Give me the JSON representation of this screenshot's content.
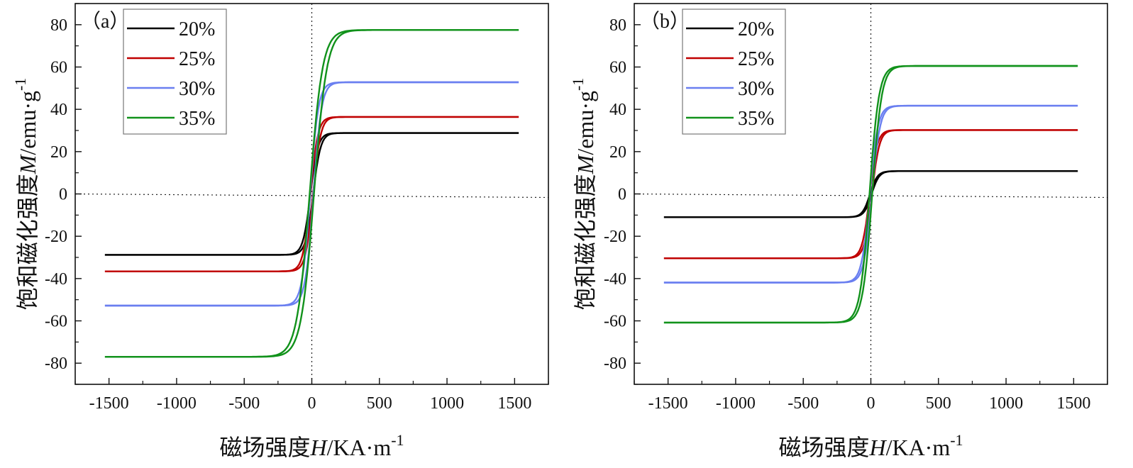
{
  "chart_data": [
    {
      "type": "line",
      "panel_label": "（a）",
      "xlabel_prefix": "磁场强度",
      "xlabel_symbol": "H",
      "xlabel_unit": "/KA·m",
      "xlabel_exp": "-1",
      "ylabel_prefix": "饱和磁化强度",
      "ylabel_symbol": "M",
      "ylabel_unit": "/emu·g",
      "ylabel_exp": "-1",
      "xlim": [
        -1750,
        1750
      ],
      "ylim": [
        -90,
        90
      ],
      "xticks": [
        -1500,
        -1000,
        -500,
        0,
        500,
        1000,
        1500
      ],
      "xtick_labels": [
        "-1500",
        "-1000",
        "-500",
        "0",
        "500",
        "1000",
        "1500"
      ],
      "yticks": [
        -80,
        -60,
        -40,
        -20,
        0,
        20,
        40,
        60,
        80
      ],
      "ytick_labels": [
        "-80",
        "-60",
        "-40",
        "-20",
        "0",
        "20",
        "40",
        "60",
        "80"
      ],
      "legend_position": "top-left",
      "series": [
        {
          "name": "20%",
          "color": "#000000",
          "ms": 28.8,
          "ms_neg": 28.8,
          "width": 55,
          "loop_offset": 10
        },
        {
          "name": "25%",
          "color": "#c00000",
          "ms": 36.4,
          "ms_neg": 36.6,
          "width": 55,
          "loop_offset": 10
        },
        {
          "name": "30%",
          "color": "#6a7ff0",
          "ms": 52.8,
          "ms_neg": 52.8,
          "width": 60,
          "loop_offset": 12
        },
        {
          "name": "35%",
          "color": "#11921b",
          "ms": 77.5,
          "ms_neg": 77.0,
          "width": 95,
          "loop_offset": 16
        }
      ]
    },
    {
      "type": "line",
      "panel_label": "（b）",
      "xlabel_prefix": "磁场强度",
      "xlabel_symbol": "H",
      "xlabel_unit": "/KA·m",
      "xlabel_exp": "-1",
      "ylabel_prefix": "饱和磁化强度",
      "ylabel_symbol": "M",
      "ylabel_unit": "/emu·g",
      "ylabel_exp": "-1",
      "xlim": [
        -1750,
        1750
      ],
      "ylim": [
        -90,
        90
      ],
      "xticks": [
        -1500,
        -1000,
        -500,
        0,
        500,
        1000,
        1500
      ],
      "xtick_labels": [
        "-1500",
        "-1000",
        "-500",
        "0",
        "500",
        "1000",
        "1500"
      ],
      "yticks": [
        -80,
        -60,
        -40,
        -20,
        0,
        20,
        40,
        60,
        80
      ],
      "ytick_labels": [
        "-80",
        "-60",
        "-40",
        "-20",
        "0",
        "20",
        "40",
        "60",
        "80"
      ],
      "legend_position": "top-left",
      "series": [
        {
          "name": "20%",
          "color": "#000000",
          "ms": 10.8,
          "ms_neg": 11.0,
          "width": 55,
          "loop_offset": 6
        },
        {
          "name": "25%",
          "color": "#c00000",
          "ms": 30.2,
          "ms_neg": 30.4,
          "width": 55,
          "loop_offset": 8
        },
        {
          "name": "30%",
          "color": "#6a7ff0",
          "ms": 41.7,
          "ms_neg": 41.9,
          "width": 60,
          "loop_offset": 8
        },
        {
          "name": "35%",
          "color": "#11921b",
          "ms": 60.5,
          "ms_neg": 60.8,
          "width": 70,
          "loop_offset": 10
        }
      ]
    }
  ]
}
